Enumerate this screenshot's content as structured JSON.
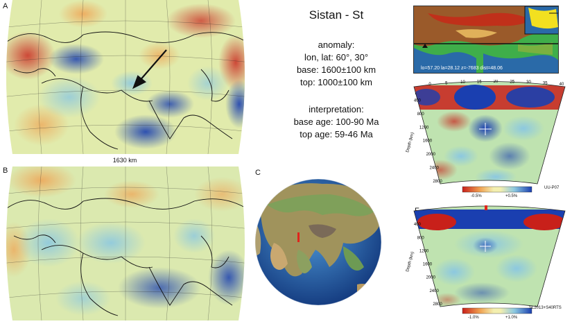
{
  "panels": {
    "a": {
      "letter": "A",
      "scale_label": "1630 km"
    },
    "b": {
      "letter": "B"
    },
    "c": {
      "letter": "C"
    },
    "d": {
      "letter": "D",
      "readout": "lo=57.20 la=28.12 z=-7683 dist=48.06"
    },
    "e": {
      "letter": "E",
      "model": "UU-P07",
      "colorbar_min": "-0.5%",
      "colorbar_max": "+0.5%"
    },
    "f": {
      "letter": "F",
      "model": "SL2013+S40RTS",
      "colorbar_min": "-1.0%",
      "colorbar_max": "+1.0%"
    }
  },
  "info": {
    "title": "Sistan - St",
    "anomaly_heading": "anomaly:",
    "lonlat": "lon, lat: 60°, 30°",
    "base": "base: 1600±100 km",
    "top": "top: 1000±100 km",
    "interp_heading": "interpretation:",
    "base_age": "base age:  100-90 Ma",
    "top_age": "top age: 59-46 Ma"
  },
  "section_axis": {
    "distance_ticks": [
      "0",
      "5",
      "10",
      "15",
      "20",
      "25",
      "30",
      "35",
      "40"
    ],
    "depth_ticks": [
      "400",
      "800",
      "1200",
      "1600",
      "2000",
      "2400",
      "2800"
    ],
    "depth_label": "Depth (km)"
  },
  "colors": {
    "fast": "#1a3fb0",
    "slow": "#c8201a",
    "neutral": "#f3efb0",
    "mid_green": "#a8d8a0",
    "light_blue": "#8cc8e0",
    "ocean": "#2c6bb8",
    "land": "#9a8b60",
    "marker": "#e0241c"
  }
}
